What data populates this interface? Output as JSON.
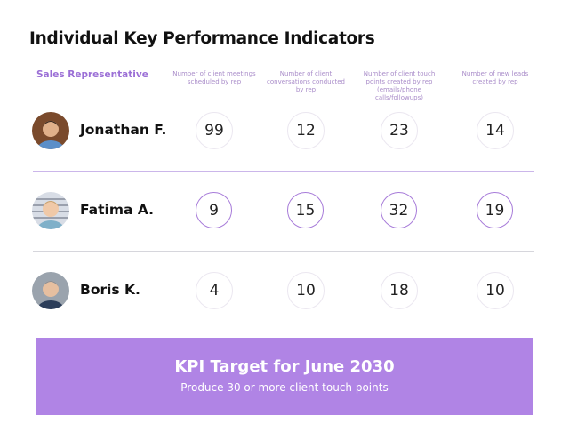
{
  "title": "Individual Key Performance Indicators",
  "table": {
    "rep_header": "Sales Representative",
    "columns": [
      "Number of client meetings scheduled by rep",
      "Number of client conversations conducted by rep",
      "Number of client touch points created by rep (emails/phone calls/followups)",
      "Number of new leads created by rep"
    ],
    "rows": [
      {
        "name": "Jonathan F.",
        "values": [
          99,
          12,
          23,
          14
        ]
      },
      {
        "name": "Fatima A.",
        "values": [
          9,
          15,
          32,
          19
        ]
      },
      {
        "name": "Boris K.",
        "values": [
          4,
          10,
          18,
          10
        ]
      }
    ]
  },
  "banner": {
    "title": "KPI Target for June 2030",
    "text": "Produce 30 or more client touch points"
  }
}
